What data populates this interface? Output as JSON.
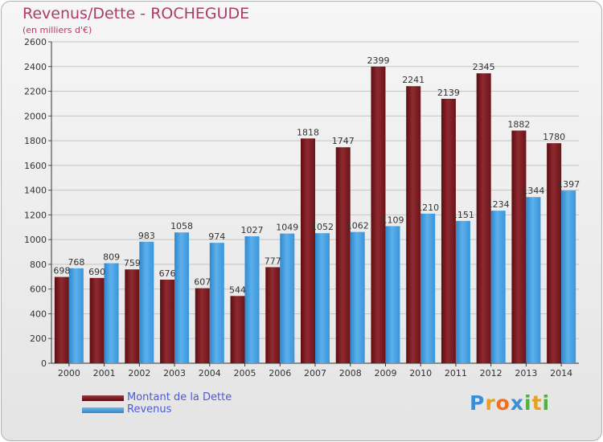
{
  "chart_data": {
    "type": "bar",
    "title": "Revenus/Dette - ROCHEGUDE",
    "subtitle": "(en milliers d'€)",
    "categories": [
      "2000",
      "2001",
      "2002",
      "2003",
      "2004",
      "2005",
      "2006",
      "2007",
      "2008",
      "2009",
      "2010",
      "2011",
      "2012",
      "2013",
      "2014"
    ],
    "series": [
      {
        "name": "Montant de la Dette",
        "color": "#7a1e22",
        "values": [
          698,
          690,
          759,
          676,
          607,
          544,
          777,
          1818,
          1747,
          2399,
          2241,
          2139,
          2345,
          1882,
          1780
        ]
      },
      {
        "name": "Revenus",
        "color": "#3f9be0",
        "values": [
          768,
          809,
          983,
          1058,
          974,
          1027,
          1049,
          1052,
          1062,
          1109,
          1210,
          1151,
          1234,
          1344,
          1397
        ]
      }
    ],
    "ylim": [
      0,
      2600
    ],
    "yticks": [
      0,
      200,
      400,
      600,
      800,
      1000,
      1200,
      1400,
      1600,
      1800,
      2000,
      2200,
      2400,
      2600
    ],
    "grid": true,
    "legend": "bottom-left"
  },
  "branding": {
    "letters": [
      "P",
      "r",
      "o",
      "x",
      "i",
      "t",
      "i"
    ],
    "colors": [
      "#3a8fd8",
      "#e8a020",
      "#f07020",
      "#3a8fd8",
      "#50b040",
      "#e8a020",
      "#50b040"
    ]
  }
}
